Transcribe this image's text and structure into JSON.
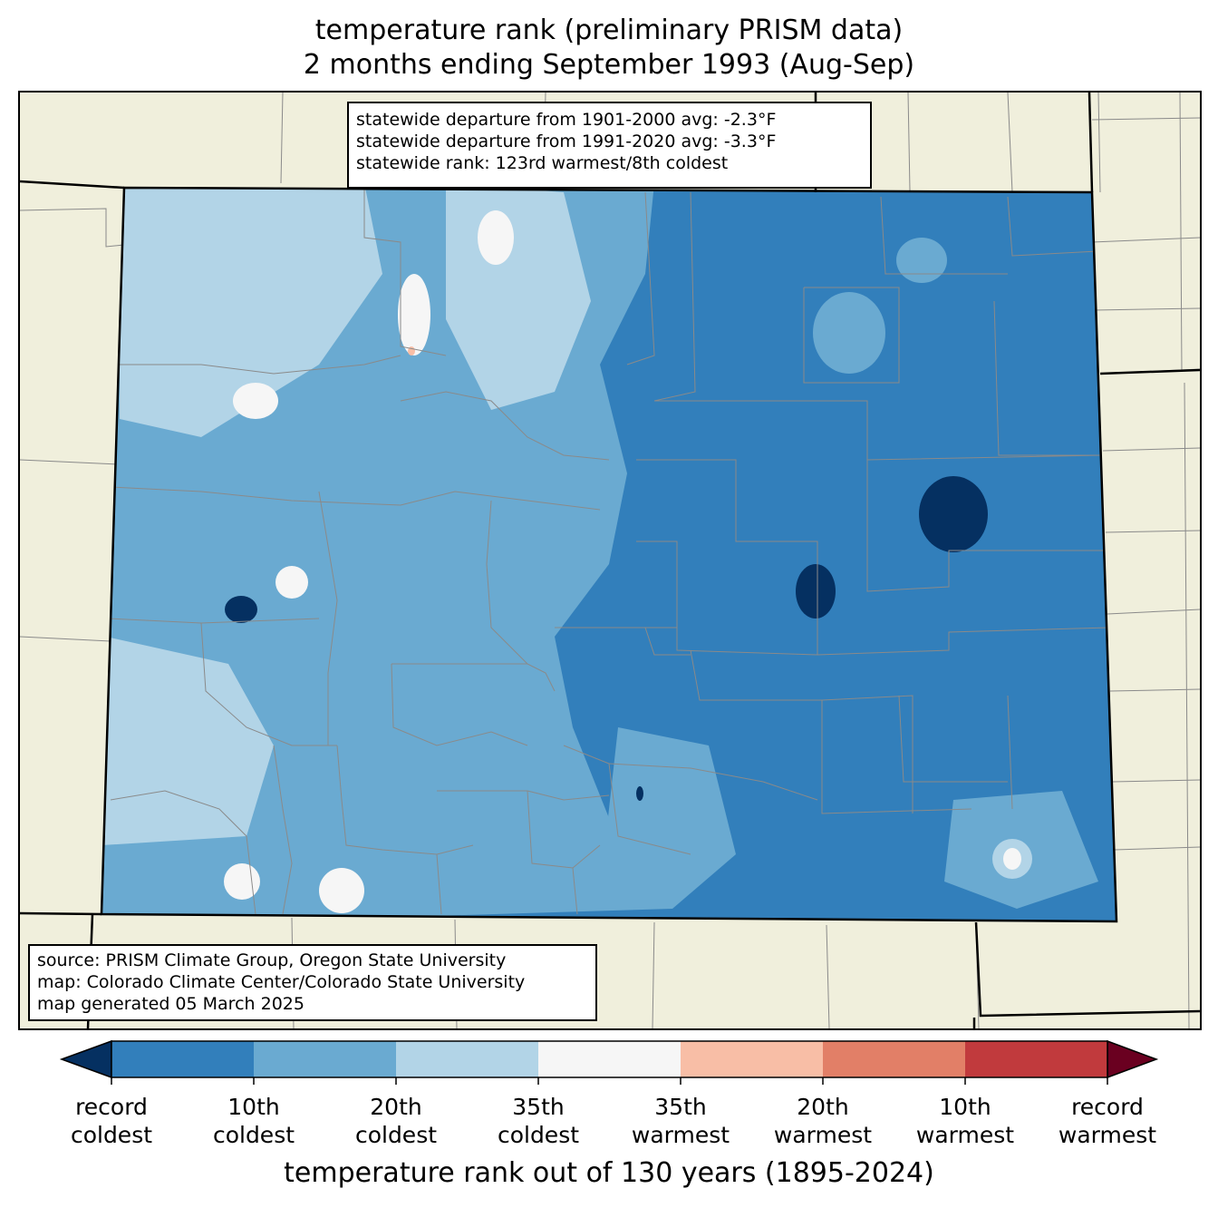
{
  "title": {
    "line1": "temperature rank (preliminary PRISM data)",
    "line2": "2 months ending September 1993 (Aug-Sep)"
  },
  "stats": {
    "line1": "statewide departure from 1901-2000 avg: -2.3°F",
    "line2": "statewide departure from 1991-2020 avg: -3.3°F",
    "line3": "statewide rank: 123rd warmest/8th coldest"
  },
  "source": {
    "line1": "source: PRISM Climate Group, Oregon State University",
    "line2": "map: Colorado Climate Center/Colorado State University",
    "line3": "map generated 05 March 2025"
  },
  "colors": {
    "background_land": "#f0efdc",
    "record_coldest": "#053061",
    "coldest_10": "#327fbb",
    "coldest_20": "#6aaad1",
    "coldest_35": "#b2d4e7",
    "middle": "#f6f6f6",
    "warmest_35": "#f8bea6",
    "warmest_20": "#e27f67",
    "warmest_10": "#c13a3d",
    "record_warmest": "#6a0020"
  },
  "colorbar": {
    "segments": [
      "#053061",
      "#327fbb",
      "#6aaad1",
      "#b2d4e7",
      "#f6f6f6",
      "#f8bea6",
      "#e27f67",
      "#c13a3d",
      "#6a0020"
    ],
    "ticks": [
      {
        "line1": "record",
        "line2": "coldest"
      },
      {
        "line1": "10th",
        "line2": "coldest"
      },
      {
        "line1": "20th",
        "line2": "coldest"
      },
      {
        "line1": "35th",
        "line2": "coldest"
      },
      {
        "line1": "35th",
        "line2": "warmest"
      },
      {
        "line1": "20th",
        "line2": "warmest"
      },
      {
        "line1": "10th",
        "line2": "warmest"
      },
      {
        "line1": "record",
        "line2": "warmest"
      }
    ],
    "title": "temperature rank out of 130 years (1895-2024)"
  }
}
